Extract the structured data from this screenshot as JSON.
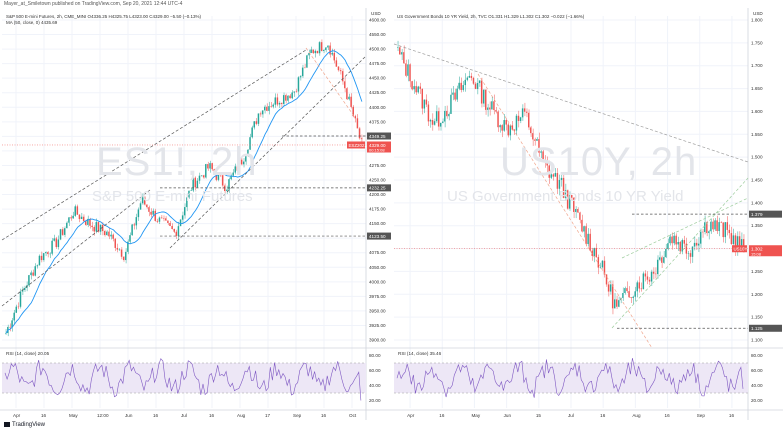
{
  "header": {
    "byline": "Mayer_at_Smiletown published on TradingView.com, Sep 20, 2021 12:44 UTC-4"
  },
  "footer": {
    "brand": "TradingView"
  },
  "colors": {
    "up": "#26a69a",
    "down": "#ef5350",
    "ma": "#2196f3",
    "rsi": "#7e57c2",
    "rsi_band": "#ede7f6",
    "trend_dark": "#555555",
    "trend_red": "#f0a58c",
    "trend_green": "#9ccc9c",
    "level": "#555555",
    "last_label": "#ef5350"
  },
  "charts": [
    {
      "id": "left",
      "title_line": "S&P 500 E-mini Futures, 2h, CME_MINI  O4336.25  H4325.75  L4323.00  C4329.00  −5.50 (−0.13%)",
      "indicator_line": "MA (50, close, 0)  4435.69",
      "currency": "USD",
      "watermark_symbol": "ES1!, 2h",
      "watermark_name": "S&P 500 E-mini Futures",
      "rsi_label": "RSI (14, close)  20.05",
      "x_labels": [
        "Apr",
        "16",
        "May",
        "12:00",
        "Jun",
        "16",
        "Jul",
        "16",
        "Aug",
        "17",
        "Sep",
        "16",
        "Oct"
      ],
      "price_ticks": [
        "4600.00",
        "4550.00",
        "4500.00",
        "4475.00",
        "4450.00",
        "4425.00",
        "4400.00",
        "4375.00",
        "4350.00",
        "4300.00",
        "4275.00",
        "4250.00",
        "4200.00",
        "4175.00",
        "4150.00",
        "4100.00",
        "4075.00",
        "4050.00",
        "4000.00",
        "3975.00",
        "3950.00",
        "3925.00",
        "3900.00"
      ],
      "levels": [
        "4349.25",
        "4232.25",
        "4123.50"
      ],
      "last_label": "ESZ2021",
      "last_value": "4329.00",
      "last_time": "00:15:08",
      "rsi_ticks": [
        "80.00",
        "60.00",
        "40.00",
        "20.00"
      ]
    },
    {
      "id": "right",
      "title_line": "US Government Bonds 10 YR Yield, 2h, TVC  O1.331  H1.329  L1.302  C1.302  −0.022 (−1.66%)",
      "indicator_line": "",
      "currency": "USD",
      "watermark_symbol": "US10Y, 2h",
      "watermark_name": "US Government Bonds 10 YR Yield",
      "rsi_label": "RSI (14, close)  35.46",
      "x_labels": [
        "Apr",
        "16",
        "May",
        "Jun",
        "15",
        "Jul",
        "16",
        "Aug",
        "16",
        "Sep",
        "16"
      ],
      "price_ticks": [
        "1.800",
        "1.750",
        "1.700",
        "1.650",
        "1.600",
        "1.550",
        "1.500",
        "1.450",
        "1.400",
        "1.350",
        "1.300",
        "1.250",
        "1.200",
        "1.150",
        "1.100"
      ],
      "levels": [
        "1.379",
        "1.125"
      ],
      "last_label": "US10Y",
      "last_value": "1.302",
      "last_time": "15:08",
      "rsi_ticks": [
        "80.00",
        "60.00",
        "40.00",
        "20.00"
      ]
    }
  ],
  "chart_data": [
    {
      "type": "line",
      "title": "S&P 500 E-mini Futures, 2h",
      "series": [
        {
          "name": "ES1! close",
          "x": [
            "Apr",
            "16",
            "May",
            "12:00",
            "Jun",
            "16",
            "Jul",
            "16",
            "Aug",
            "17",
            "Sep",
            "16"
          ],
          "values": [
            3905,
            4075,
            4180,
            4130,
            4205,
            4130,
            4280,
            4235,
            4410,
            4450,
            4540,
            4329
          ]
        },
        {
          "name": "MA (50, close, 0)",
          "last": 4435.69
        }
      ],
      "levels": [
        4349.25,
        4232.25,
        4123.5
      ],
      "last_value": 4329.0,
      "ylim": [
        3880,
        4620
      ],
      "rsi": {
        "last": 20.05,
        "band": [
          30,
          70
        ],
        "ylim": [
          10,
          90
        ]
      }
    },
    {
      "type": "line",
      "title": "US Government Bonds 10 YR Yield, 2h",
      "series": [
        {
          "name": "US10Y close",
          "x": [
            "Apr",
            "16",
            "May",
            "Jun",
            "15",
            "Jul",
            "16",
            "Aug",
            "16",
            "Sep",
            "16"
          ],
          "values": [
            1.74,
            1.58,
            1.69,
            1.57,
            1.49,
            1.36,
            1.17,
            1.25,
            1.3,
            1.34,
            1.302
          ]
        }
      ],
      "levels": [
        1.379,
        1.125
      ],
      "last_value": 1.302,
      "ylim": [
        1.09,
        1.82
      ],
      "rsi": {
        "last": 35.46,
        "band": [
          30,
          70
        ],
        "ylim": [
          10,
          90
        ]
      }
    }
  ]
}
